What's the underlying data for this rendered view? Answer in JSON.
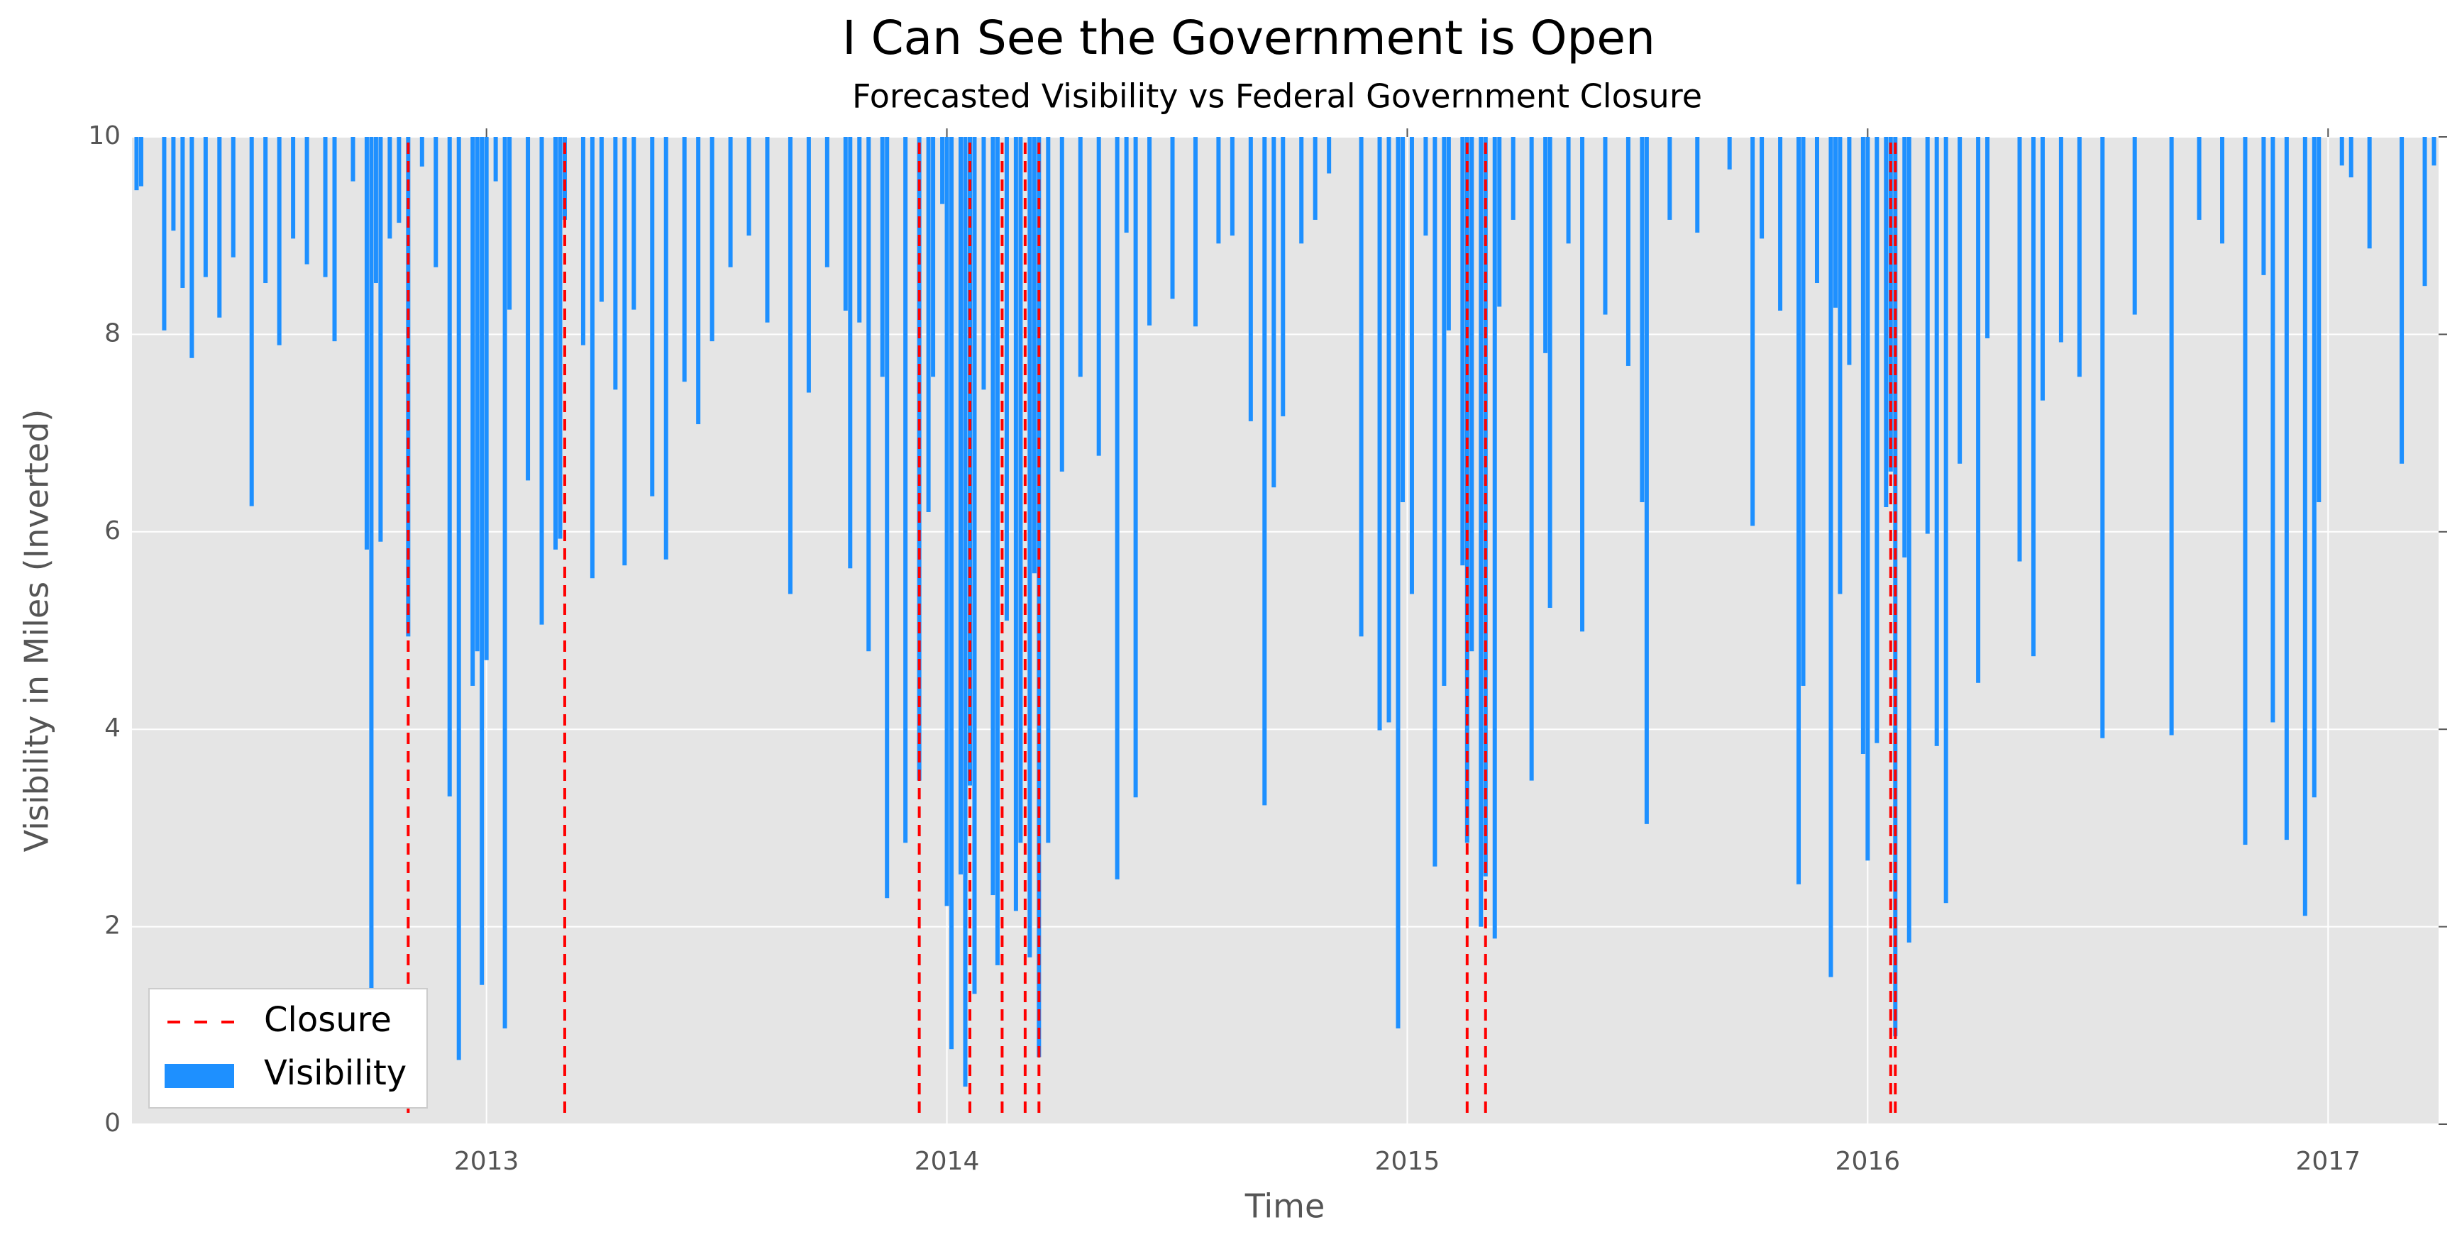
{
  "chart_data": {
    "type": "bar",
    "title": "I Can See the Government is Open",
    "subtitle": "Forecasted Visibility vs Federal Government Closure",
    "xlabel": "Time",
    "ylabel": "Visibility in Miles (Inverted)",
    "xlim": [
      2012.23,
      2017.24
    ],
    "ylim": [
      0,
      10
    ],
    "xticks": [
      2013,
      2014,
      2015,
      2016,
      2017
    ],
    "yticks": [
      0,
      2,
      4,
      6,
      8,
      10
    ],
    "grid": true,
    "legend": "lower left",
    "series": [
      {
        "name": "Closure",
        "color": "#ff0000",
        "x": [
          2012.83,
          2013.17,
          2013.94,
          2014.05,
          2014.12,
          2014.17,
          2014.2,
          2015.13,
          2015.17,
          2016.05,
          2016.06
        ]
      },
      {
        "name": "Visibility",
        "color": "#1e90ff",
        "x": [
          2012.24,
          2012.25,
          2012.3,
          2012.32,
          2012.34,
          2012.36,
          2012.39,
          2012.42,
          2012.45,
          2012.49,
          2012.52,
          2012.55,
          2012.58,
          2012.61,
          2012.65,
          2012.67,
          2012.71,
          2012.74,
          2012.75,
          2012.76,
          2012.77,
          2012.79,
          2012.81,
          2012.83,
          2012.86,
          2012.89,
          2012.92,
          2012.94,
          2012.97,
          2012.98,
          2012.99,
          2013.0,
          2013.02,
          2013.04,
          2013.05,
          2013.09,
          2013.12,
          2013.15,
          2013.16,
          2013.17,
          2013.21,
          2013.23,
          2013.25,
          2013.28,
          2013.3,
          2013.32,
          2013.36,
          2013.39,
          2013.43,
          2013.46,
          2013.49,
          2013.53,
          2013.57,
          2013.61,
          2013.66,
          2013.7,
          2013.74,
          2013.78,
          2013.79,
          2013.81,
          2013.83,
          2013.86,
          2013.87,
          2013.91,
          2013.94,
          2013.96,
          2013.97,
          2013.99,
          2014.0,
          2014.01,
          2014.03,
          2014.04,
          2014.05,
          2014.06,
          2014.08,
          2014.1,
          2014.11,
          2014.13,
          2014.15,
          2014.16,
          2014.18,
          2014.19,
          2014.2,
          2014.22,
          2014.25,
          2014.29,
          2014.33,
          2014.37,
          2014.39,
          2014.41,
          2014.44,
          2014.49,
          2014.54,
          2014.59,
          2014.62,
          2014.66,
          2014.69,
          2014.71,
          2014.73,
          2014.77,
          2014.8,
          2014.83,
          2014.9,
          2014.94,
          2014.96,
          2014.98,
          2014.99,
          2015.01,
          2015.04,
          2015.06,
          2015.08,
          2015.09,
          2015.12,
          2015.13,
          2015.14,
          2015.16,
          2015.17,
          2015.19,
          2015.2,
          2015.23,
          2015.27,
          2015.3,
          2015.31,
          2015.35,
          2015.38,
          2015.43,
          2015.48,
          2015.51,
          2015.52,
          2015.57,
          2015.63,
          2015.7,
          2015.75,
          2015.77,
          2015.81,
          2015.85,
          2015.86,
          2015.89,
          2015.92,
          2015.93,
          2015.94,
          2015.96,
          2015.99,
          2016.0,
          2016.02,
          2016.04,
          2016.05,
          2016.06,
          2016.08,
          2016.09,
          2016.13,
          2016.15,
          2016.17,
          2016.2,
          2016.24,
          2016.26,
          2016.33,
          2016.36,
          2016.38,
          2016.42,
          2016.46,
          2016.51,
          2016.58,
          2016.66,
          2016.72,
          2016.77,
          2016.82,
          2016.86,
          2016.88,
          2016.91,
          2016.95,
          2016.97,
          2016.98,
          2017.03,
          2017.05,
          2017.09,
          2017.16,
          2017.21,
          2017.23
        ],
        "values": [
          9.46,
          9.5,
          8.04,
          9.05,
          8.47,
          7.76,
          8.58,
          8.17,
          8.78,
          6.26,
          8.52,
          7.89,
          8.97,
          8.71,
          8.58,
          7.93,
          9.55,
          5.82,
          1.34,
          8.52,
          5.9,
          8.97,
          9.13,
          4.94,
          9.7,
          8.68,
          3.32,
          0.65,
          4.44,
          4.79,
          1.41,
          4.7,
          9.55,
          0.97,
          8.25,
          6.52,
          5.06,
          5.82,
          5.93,
          9.16,
          7.89,
          5.53,
          8.33,
          7.44,
          5.66,
          8.25,
          6.36,
          5.72,
          7.52,
          7.09,
          7.93,
          8.68,
          9.0,
          8.12,
          5.37,
          7.41,
          8.68,
          8.24,
          5.63,
          8.12,
          4.79,
          7.57,
          2.29,
          2.85,
          3.48,
          6.2,
          7.57,
          9.32,
          2.21,
          0.76,
          2.53,
          0.38,
          3.43,
          1.32,
          7.44,
          2.32,
          1.61,
          5.1,
          2.16,
          2.85,
          1.69,
          5.58,
          0.68,
          2.85,
          6.61,
          7.57,
          6.77,
          2.48,
          9.03,
          3.31,
          8.09,
          8.36,
          8.08,
          8.92,
          9.0,
          7.12,
          3.23,
          6.45,
          7.17,
          8.92,
          9.16,
          9.63,
          4.94,
          3.99,
          4.07,
          0.97,
          6.3,
          5.37,
          9.0,
          2.61,
          4.44,
          8.04,
          5.66,
          2.85,
          4.79,
          2.0,
          2.51,
          1.88,
          8.28,
          9.16,
          3.48,
          7.81,
          5.23,
          8.92,
          4.99,
          8.2,
          7.68,
          6.3,
          3.04,
          9.16,
          9.03,
          9.67,
          6.06,
          8.97,
          8.24,
          2.43,
          4.44,
          8.52,
          1.49,
          8.27,
          5.37,
          7.69,
          3.75,
          2.67,
          3.86,
          6.25,
          6.61,
          0.89,
          5.74,
          1.84,
          5.98,
          3.83,
          2.24,
          6.69,
          4.47,
          7.96,
          5.7,
          4.74,
          7.33,
          7.92,
          7.57,
          3.91,
          8.2,
          3.94,
          9.16,
          8.92,
          2.83,
          8.6,
          4.07,
          2.88,
          2.11,
          3.31,
          6.3,
          9.71,
          9.59,
          8.87,
          6.69,
          8.49,
          9.71
        ]
      }
    ]
  }
}
